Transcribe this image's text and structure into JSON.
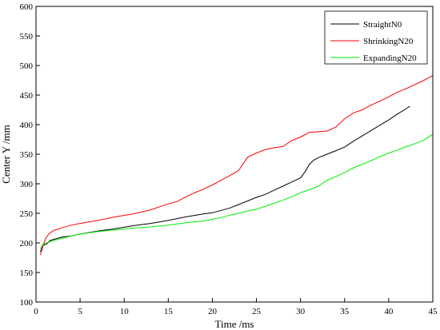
{
  "chart_data": {
    "type": "line",
    "xlabel": "Time /ms",
    "ylabel": "Center Y /mm",
    "xlim": [
      0,
      45
    ],
    "ylim": [
      100,
      600
    ],
    "xticks": [
      0,
      5,
      10,
      15,
      20,
      25,
      30,
      35,
      40,
      45
    ],
    "yticks": [
      100,
      150,
      200,
      250,
      300,
      350,
      400,
      450,
      500,
      550,
      600
    ],
    "grid": false,
    "legend_position": "top-right",
    "series": [
      {
        "name": "StraightN0",
        "color": "#000000",
        "x": [
          0.5,
          0.8,
          1.2,
          1.6,
          2,
          3,
          4,
          5,
          7,
          9,
          11,
          13,
          15,
          17,
          19,
          20,
          21,
          22,
          23,
          24,
          25,
          26,
          27,
          28,
          29,
          30,
          30.5,
          31,
          31.5,
          32,
          33,
          34,
          35,
          36,
          37,
          38,
          39,
          40,
          41,
          42.4
        ],
        "y": [
          185,
          196,
          198,
          204,
          206,
          210,
          212,
          215,
          220,
          224,
          229,
          233,
          238,
          244,
          249,
          251,
          255,
          259,
          265,
          271,
          277,
          282,
          289,
          296,
          303,
          310,
          320,
          333,
          340,
          344,
          350,
          356,
          362,
          372,
          381,
          390,
          399,
          408,
          418,
          431
        ]
      },
      {
        "name": "ShrinkingN20",
        "color": "#ff0000",
        "x": [
          0.5,
          0.8,
          1.1,
          1.5,
          2,
          3,
          4,
          5,
          7,
          9,
          11,
          13,
          15,
          16,
          17,
          18,
          19,
          20,
          21,
          22,
          23,
          24,
          25,
          26,
          27,
          28,
          29,
          30,
          31,
          32,
          33,
          34,
          35,
          36,
          37,
          38,
          39,
          40,
          41,
          42,
          43,
          44,
          45
        ],
        "y": [
          180,
          195,
          208,
          216,
          221,
          226,
          230,
          233,
          238,
          244,
          249,
          256,
          266,
          270,
          278,
          285,
          291,
          298,
          306,
          314,
          323,
          345,
          352,
          358,
          361,
          363,
          373,
          379,
          387,
          388,
          389,
          396,
          410,
          420,
          425,
          433,
          440,
          447,
          455,
          461,
          468,
          475,
          483
        ]
      },
      {
        "name": "ExpandingN20",
        "color": "#00ee00",
        "x": [
          0.5,
          0.8,
          1.2,
          1.6,
          2,
          3,
          4,
          5,
          7,
          9,
          11,
          13,
          15,
          17,
          19,
          20,
          21,
          22,
          23,
          24,
          25,
          26,
          27,
          28,
          29,
          30,
          31,
          32,
          33,
          34,
          35,
          36,
          37,
          38,
          39,
          40,
          41,
          42,
          43,
          44,
          45
        ],
        "y": [
          190,
          198,
          200,
          202,
          204,
          208,
          212,
          215,
          219,
          222,
          225,
          227,
          230,
          234,
          237,
          240,
          243,
          247,
          250,
          254,
          257,
          262,
          267,
          272,
          278,
          285,
          290,
          296,
          306,
          312,
          319,
          327,
          333,
          339,
          346,
          352,
          357,
          363,
          368,
          374,
          384
        ]
      }
    ]
  }
}
